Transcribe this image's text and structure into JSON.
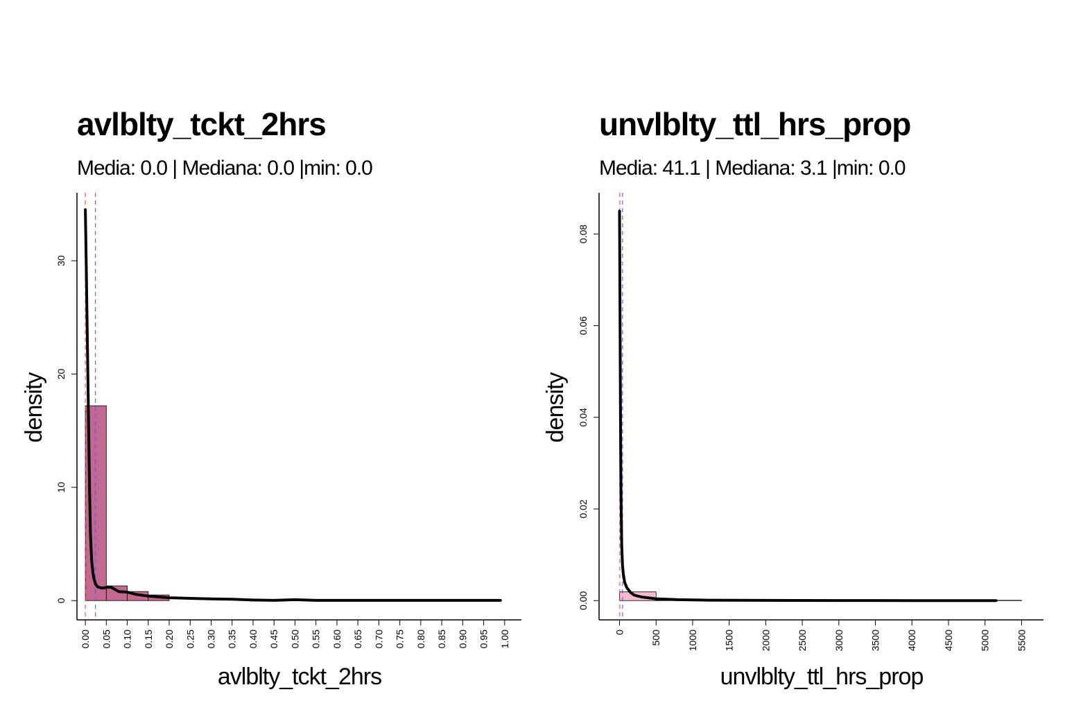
{
  "chart_data": [
    {
      "type": "histogram",
      "title": "avlblty_tckt_2hrs",
      "subtitle": "Media: 0.0 | Mediana: 0.0 |min: 0.0",
      "xlabel": "avlblty_tckt_2hrs",
      "ylabel": "density",
      "xlim": [
        -0.02,
        1.04
      ],
      "ylim": [
        -1.7,
        36
      ],
      "x_ticks": [
        0.0,
        0.05,
        0.1,
        0.15,
        0.2,
        0.25,
        0.3,
        0.35,
        0.4,
        0.45,
        0.5,
        0.55,
        0.6,
        0.65,
        0.7,
        0.75,
        0.8,
        0.85,
        0.9,
        0.95,
        1.0
      ],
      "x_tick_labels": [
        "0.00",
        "0.05",
        "0.10",
        "0.15",
        "0.20",
        "0.25",
        "0.30",
        "0.35",
        "0.40",
        "0.45",
        "0.50",
        "0.55",
        "0.60",
        "0.65",
        "0.70",
        "0.75",
        "0.80",
        "0.85",
        "0.90",
        "0.95",
        "1.00"
      ],
      "y_ticks": [
        0,
        10,
        20,
        30
      ],
      "y_tick_labels": [
        "0",
        "10",
        "20",
        "30"
      ],
      "bars": [
        {
          "x0": 0.0,
          "x1": 0.05,
          "density": 17.2
        },
        {
          "x0": 0.05,
          "x1": 0.1,
          "density": 1.3
        },
        {
          "x0": 0.1,
          "x1": 0.15,
          "density": 0.8
        },
        {
          "x0": 0.15,
          "x1": 0.2,
          "density": 0.5
        }
      ],
      "bar_color": "#c0608a",
      "density_curve": {
        "x": [
          0.0,
          0.002,
          0.004,
          0.006,
          0.008,
          0.01,
          0.012,
          0.015,
          0.018,
          0.02,
          0.025,
          0.03,
          0.04,
          0.05,
          0.06,
          0.07,
          0.08,
          0.1,
          0.12,
          0.15,
          0.2,
          0.25,
          0.3,
          0.35,
          0.4,
          0.45,
          0.5,
          0.55,
          0.6,
          0.7,
          0.8,
          0.9,
          0.99
        ],
        "y": [
          34.5,
          30,
          25,
          20,
          15,
          10,
          6,
          3.5,
          2.5,
          2,
          1.4,
          1.2,
          1.1,
          1.15,
          1.2,
          1.0,
          0.8,
          0.75,
          0.55,
          0.4,
          0.25,
          0.2,
          0.15,
          0.12,
          0.05,
          0.02,
          0.08,
          0.02,
          0.02,
          0.02,
          0.02,
          0.02,
          0.02
        ]
      },
      "mean_line": 0.024,
      "median_line": 0.0
    },
    {
      "type": "histogram",
      "title": "unvlblty_ttl_hrs_prop",
      "subtitle": "Media: 41.1 | Mediana: 3.1 |min: 0.0",
      "xlabel": "unvlblty_ttl_hrs_prop",
      "ylabel": "density",
      "xlim": [
        -280,
        5800
      ],
      "ylim": [
        -0.0042,
        0.089
      ],
      "x_ticks": [
        0,
        500,
        1000,
        1500,
        2000,
        2500,
        3000,
        3500,
        4000,
        4500,
        5000,
        5500
      ],
      "x_tick_labels": [
        "0",
        "500",
        "1000",
        "1500",
        "2000",
        "2500",
        "3000",
        "3500",
        "4000",
        "4500",
        "5000",
        "5500"
      ],
      "y_ticks": [
        0.0,
        0.02,
        0.04,
        0.06,
        0.08
      ],
      "y_tick_labels": [
        "0.00",
        "0.02",
        "0.04",
        "0.06",
        "0.08"
      ],
      "bars": [
        {
          "x0": 0,
          "x1": 500,
          "density": 0.0019
        },
        {
          "x0": 500,
          "x1": 5500,
          "density": 2e-05
        }
      ],
      "bar_color": "#f4b6cb",
      "density_curve": {
        "x": [
          0,
          5,
          10,
          15,
          20,
          25,
          30,
          40,
          50,
          70,
          100,
          150,
          200,
          300,
          500,
          800,
          1200,
          2000,
          3000,
          4000,
          5000,
          5150
        ],
        "y": [
          0.085,
          0.07,
          0.05,
          0.035,
          0.024,
          0.017,
          0.012,
          0.008,
          0.006,
          0.004,
          0.0028,
          0.0018,
          0.0012,
          0.0008,
          0.0004,
          0.0002,
          0.0001,
          5e-05,
          2e-05,
          1e-05,
          1e-05,
          1e-05
        ]
      },
      "mean_line": 41.1,
      "median_line": 3.1
    }
  ]
}
